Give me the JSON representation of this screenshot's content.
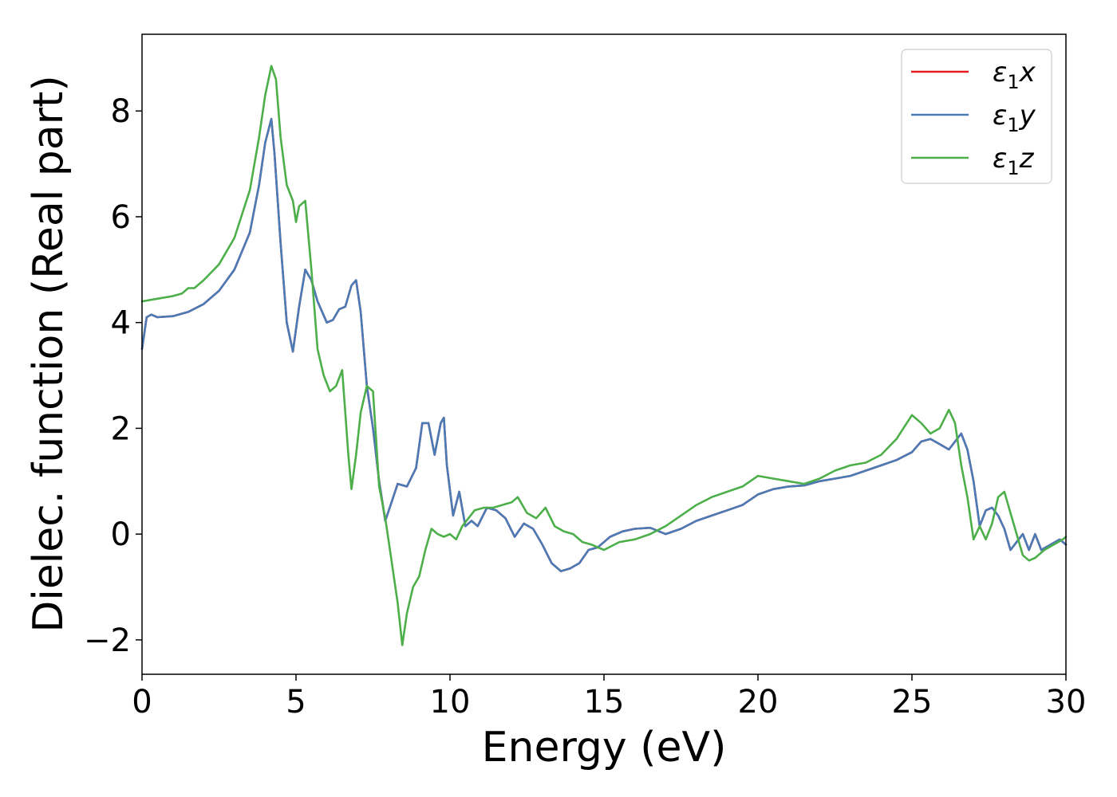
{
  "chart_data": {
    "type": "line",
    "xlabel": "Energy (eV)",
    "ylabel": "Dielec. function (Real part)",
    "xlim": [
      0,
      30
    ],
    "ylim": [
      -2.65,
      9.45
    ],
    "xticks": [
      0,
      5,
      10,
      15,
      20,
      25,
      30
    ],
    "yticks": [
      -2,
      0,
      2,
      4,
      6,
      8
    ],
    "xtick_labels": [
      "0",
      "5",
      "10",
      "15",
      "20",
      "25",
      "30"
    ],
    "ytick_labels": [
      "−2",
      "0",
      "2",
      "4",
      "6",
      "8"
    ],
    "legend_position": "top-right",
    "grid": false,
    "series": [
      {
        "name": "ε1x",
        "name_parts": {
          "symbol": "ε",
          "sub": "1",
          "axis": "x"
        },
        "color": "#e41a1c",
        "x": [
          0,
          0.15,
          0.3,
          0.5,
          1,
          1.5,
          2,
          2.5,
          3,
          3.5,
          3.8,
          4.0,
          4.2,
          4.3,
          4.5,
          4.7,
          4.9,
          5.1,
          5.3,
          5.5,
          5.7,
          6.0,
          6.2,
          6.4,
          6.6,
          6.8,
          6.95,
          7.1,
          7.3,
          7.5,
          7.7,
          7.9,
          8.1,
          8.3,
          8.6,
          8.9,
          9.1,
          9.3,
          9.5,
          9.7,
          9.8,
          9.9,
          10.1,
          10.3,
          10.5,
          10.7,
          10.9,
          11.2,
          11.5,
          11.8,
          12.1,
          12.4,
          12.7,
          13.0,
          13.3,
          13.6,
          13.9,
          14.2,
          14.5,
          14.8,
          15.2,
          15.6,
          16.0,
          16.5,
          17.0,
          17.5,
          18.0,
          18.5,
          19.0,
          19.5,
          20.0,
          20.5,
          21.0,
          21.5,
          22.0,
          22.5,
          23.0,
          23.5,
          24.0,
          24.5,
          25.0,
          25.3,
          25.6,
          25.9,
          26.2,
          26.4,
          26.6,
          26.8,
          27.0,
          27.2,
          27.4,
          27.6,
          27.8,
          28.0,
          28.2,
          28.4,
          28.6,
          28.8,
          29.0,
          29.2,
          29.5,
          29.8,
          30.0
        ],
        "y": [
          3.5,
          4.1,
          4.15,
          4.1,
          4.12,
          4.2,
          4.35,
          4.6,
          5.0,
          5.7,
          6.6,
          7.4,
          7.85,
          7.2,
          5.5,
          4.0,
          3.45,
          4.3,
          5.0,
          4.8,
          4.4,
          4.0,
          4.05,
          4.25,
          4.3,
          4.7,
          4.8,
          4.2,
          2.8,
          2.0,
          1.0,
          0.25,
          0.6,
          0.95,
          0.9,
          1.25,
          2.1,
          2.1,
          1.5,
          2.1,
          2.2,
          1.3,
          0.35,
          0.8,
          0.15,
          0.25,
          0.15,
          0.5,
          0.45,
          0.3,
          -0.05,
          0.2,
          0.1,
          -0.2,
          -0.55,
          -0.7,
          -0.65,
          -0.55,
          -0.3,
          -0.25,
          -0.05,
          0.05,
          0.1,
          0.12,
          0.0,
          0.1,
          0.25,
          0.35,
          0.45,
          0.55,
          0.75,
          0.85,
          0.9,
          0.92,
          1.0,
          1.05,
          1.1,
          1.2,
          1.3,
          1.4,
          1.55,
          1.75,
          1.8,
          1.7,
          1.6,
          1.75,
          1.9,
          1.6,
          1.0,
          0.15,
          0.45,
          0.5,
          0.35,
          0.1,
          -0.3,
          -0.15,
          0.0,
          -0.3,
          0.0,
          -0.3,
          -0.2,
          -0.1,
          -0.2
        ]
      },
      {
        "name": "ε1y",
        "name_parts": {
          "symbol": "ε",
          "sub": "1",
          "axis": "y"
        },
        "color": "#4a7bb7",
        "x": [
          0,
          0.15,
          0.3,
          0.5,
          1,
          1.5,
          2,
          2.5,
          3,
          3.5,
          3.8,
          4.0,
          4.2,
          4.3,
          4.5,
          4.7,
          4.9,
          5.1,
          5.3,
          5.5,
          5.7,
          6.0,
          6.2,
          6.4,
          6.6,
          6.8,
          6.95,
          7.1,
          7.3,
          7.5,
          7.7,
          7.9,
          8.1,
          8.3,
          8.6,
          8.9,
          9.1,
          9.3,
          9.5,
          9.7,
          9.8,
          9.9,
          10.1,
          10.3,
          10.5,
          10.7,
          10.9,
          11.2,
          11.5,
          11.8,
          12.1,
          12.4,
          12.7,
          13.0,
          13.3,
          13.6,
          13.9,
          14.2,
          14.5,
          14.8,
          15.2,
          15.6,
          16.0,
          16.5,
          17.0,
          17.5,
          18.0,
          18.5,
          19.0,
          19.5,
          20.0,
          20.5,
          21.0,
          21.5,
          22.0,
          22.5,
          23.0,
          23.5,
          24.0,
          24.5,
          25.0,
          25.3,
          25.6,
          25.9,
          26.2,
          26.4,
          26.6,
          26.8,
          27.0,
          27.2,
          27.4,
          27.6,
          27.8,
          28.0,
          28.2,
          28.4,
          28.6,
          28.8,
          29.0,
          29.2,
          29.5,
          29.8,
          30.0
        ],
        "y": [
          3.5,
          4.1,
          4.15,
          4.1,
          4.12,
          4.2,
          4.35,
          4.6,
          5.0,
          5.7,
          6.6,
          7.4,
          7.85,
          7.2,
          5.5,
          4.0,
          3.45,
          4.3,
          5.0,
          4.8,
          4.4,
          4.0,
          4.05,
          4.25,
          4.3,
          4.7,
          4.8,
          4.2,
          2.8,
          2.0,
          1.0,
          0.25,
          0.6,
          0.95,
          0.9,
          1.25,
          2.1,
          2.1,
          1.5,
          2.1,
          2.2,
          1.3,
          0.35,
          0.8,
          0.15,
          0.25,
          0.15,
          0.5,
          0.45,
          0.3,
          -0.05,
          0.2,
          0.1,
          -0.2,
          -0.55,
          -0.7,
          -0.65,
          -0.55,
          -0.3,
          -0.25,
          -0.05,
          0.05,
          0.1,
          0.12,
          0.0,
          0.1,
          0.25,
          0.35,
          0.45,
          0.55,
          0.75,
          0.85,
          0.9,
          0.92,
          1.0,
          1.05,
          1.1,
          1.2,
          1.3,
          1.4,
          1.55,
          1.75,
          1.8,
          1.7,
          1.6,
          1.75,
          1.9,
          1.6,
          1.0,
          0.15,
          0.45,
          0.5,
          0.35,
          0.1,
          -0.3,
          -0.15,
          0.0,
          -0.3,
          0.0,
          -0.3,
          -0.2,
          -0.1,
          -0.2
        ]
      },
      {
        "name": "ε1z",
        "name_parts": {
          "symbol": "ε",
          "sub": "1",
          "axis": "z"
        },
        "color": "#4daf4a",
        "x": [
          0,
          0.5,
          1,
          1.3,
          1.5,
          1.7,
          2,
          2.5,
          3,
          3.5,
          3.8,
          4.0,
          4.2,
          4.35,
          4.5,
          4.7,
          4.9,
          5.0,
          5.1,
          5.3,
          5.5,
          5.7,
          5.9,
          6.1,
          6.3,
          6.5,
          6.7,
          6.8,
          6.95,
          7.1,
          7.3,
          7.5,
          7.7,
          7.9,
          8.1,
          8.3,
          8.45,
          8.6,
          8.8,
          9.0,
          9.2,
          9.4,
          9.6,
          9.8,
          10.0,
          10.2,
          10.4,
          10.6,
          10.8,
          11.1,
          11.4,
          11.7,
          12.0,
          12.2,
          12.5,
          12.8,
          13.1,
          13.4,
          13.7,
          14.0,
          14.3,
          14.6,
          15.0,
          15.5,
          16.0,
          16.5,
          17.0,
          17.5,
          18.0,
          18.5,
          19.0,
          19.5,
          20.0,
          20.5,
          21.0,
          21.5,
          22.0,
          22.5,
          23.0,
          23.5,
          24.0,
          24.5,
          25.0,
          25.3,
          25.6,
          25.9,
          26.2,
          26.4,
          26.6,
          26.8,
          27.0,
          27.2,
          27.4,
          27.6,
          27.8,
          28.0,
          28.2,
          28.4,
          28.6,
          28.8,
          29.0,
          29.3,
          29.6,
          29.9,
          30.0
        ],
        "y": [
          4.4,
          4.45,
          4.5,
          4.55,
          4.65,
          4.65,
          4.8,
          5.1,
          5.6,
          6.5,
          7.5,
          8.3,
          8.85,
          8.6,
          7.5,
          6.6,
          6.3,
          5.9,
          6.2,
          6.3,
          5.0,
          3.5,
          3.0,
          2.7,
          2.8,
          3.1,
          1.5,
          0.85,
          1.5,
          2.3,
          2.8,
          2.7,
          0.9,
          0.3,
          -0.5,
          -1.3,
          -2.1,
          -1.5,
          -1.0,
          -0.8,
          -0.3,
          0.1,
          0.0,
          -0.05,
          0.0,
          -0.1,
          0.15,
          0.3,
          0.45,
          0.5,
          0.5,
          0.55,
          0.6,
          0.7,
          0.4,
          0.3,
          0.5,
          0.15,
          0.05,
          0.0,
          -0.15,
          -0.2,
          -0.3,
          -0.15,
          -0.1,
          0.0,
          0.15,
          0.35,
          0.55,
          0.7,
          0.8,
          0.9,
          1.1,
          1.05,
          1.0,
          0.95,
          1.05,
          1.2,
          1.3,
          1.35,
          1.5,
          1.8,
          2.25,
          2.1,
          1.9,
          2.0,
          2.35,
          2.1,
          1.3,
          0.7,
          -0.1,
          0.15,
          -0.1,
          0.2,
          0.7,
          0.8,
          0.4,
          0.0,
          -0.4,
          -0.5,
          -0.45,
          -0.3,
          -0.2,
          -0.1,
          -0.05
        ]
      }
    ]
  }
}
